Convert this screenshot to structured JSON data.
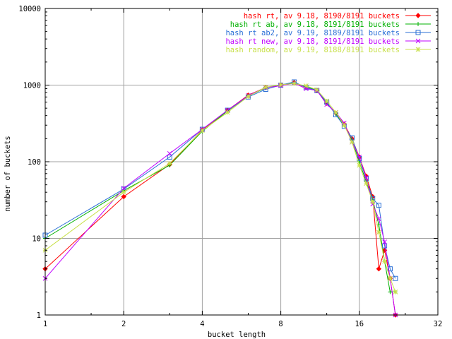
{
  "chart_data": {
    "type": "line",
    "title": "",
    "xlabel": "bucket length",
    "ylabel": "number of buckets",
    "x_scale": "log2",
    "y_scale": "log10",
    "xlim": [
      1,
      32
    ],
    "ylim": [
      1,
      10000
    ],
    "x_ticks": [
      "1",
      "2",
      "4",
      "8",
      "16",
      "32"
    ],
    "y_ticks": [
      "1",
      "10",
      "100",
      "1000",
      "10000"
    ],
    "grid": true,
    "legend_position": "top-right",
    "series": [
      {
        "name": "hash rt, av 9.18, 8190/8191 buckets",
        "color": "#ff0000",
        "marker": "diamond",
        "points": [
          [
            1,
            4
          ],
          [
            2,
            35
          ],
          [
            3,
            92
          ],
          [
            4,
            260
          ],
          [
            5,
            470
          ],
          [
            6,
            740
          ],
          [
            7,
            930
          ],
          [
            8,
            1000
          ],
          [
            9,
            1080
          ],
          [
            10,
            930
          ],
          [
            11,
            850
          ],
          [
            12,
            580
          ],
          [
            13,
            430
          ],
          [
            14,
            310
          ],
          [
            15,
            200
          ],
          [
            16,
            115
          ],
          [
            17,
            65
          ],
          [
            18,
            35
          ],
          [
            19,
            4
          ],
          [
            20,
            7
          ],
          [
            21,
            3
          ],
          [
            22,
            1
          ]
        ]
      },
      {
        "name": "hash rt ab, av 9.18, 8191/8191 buckets",
        "color": "#00b000",
        "marker": "plus",
        "points": [
          [
            1,
            10
          ],
          [
            2,
            42
          ],
          [
            3,
            90
          ],
          [
            4,
            250
          ],
          [
            5,
            460
          ],
          [
            6,
            720
          ],
          [
            7,
            920
          ],
          [
            8,
            1010
          ],
          [
            9,
            1070
          ],
          [
            10,
            950
          ],
          [
            11,
            860
          ],
          [
            12,
            590
          ],
          [
            13,
            420
          ],
          [
            14,
            300
          ],
          [
            15,
            190
          ],
          [
            16,
            100
          ],
          [
            17,
            55
          ],
          [
            18,
            32
          ],
          [
            19,
            15
          ],
          [
            20,
            5
          ],
          [
            21,
            2
          ],
          [
            22,
            2
          ]
        ]
      },
      {
        "name": "hash rt ab2, av 9.19, 8189/8191 buckets",
        "color": "#2a6fd6",
        "marker": "square",
        "points": [
          [
            1,
            11
          ],
          [
            2,
            44
          ],
          [
            3,
            115
          ],
          [
            4,
            265
          ],
          [
            5,
            470
          ],
          [
            6,
            700
          ],
          [
            7,
            880
          ],
          [
            8,
            1000
          ],
          [
            9,
            1100
          ],
          [
            10,
            930
          ],
          [
            11,
            850
          ],
          [
            12,
            600
          ],
          [
            13,
            410
          ],
          [
            14,
            290
          ],
          [
            15,
            205
          ],
          [
            16,
            110
          ],
          [
            17,
            60
          ],
          [
            18,
            33
          ],
          [
            19,
            27
          ],
          [
            20,
            8
          ],
          [
            21,
            4
          ],
          [
            22,
            3
          ]
        ]
      },
      {
        "name": "hash rt new, av 9.18, 8191/8191 buckets",
        "color": "#c000ff",
        "marker": "x",
        "points": [
          [
            1,
            3
          ],
          [
            2,
            45
          ],
          [
            3,
            128
          ],
          [
            4,
            265
          ],
          [
            5,
            470
          ],
          [
            6,
            730
          ],
          [
            7,
            930
          ],
          [
            8,
            980
          ],
          [
            9,
            1060
          ],
          [
            10,
            900
          ],
          [
            11,
            850
          ],
          [
            12,
            560
          ],
          [
            13,
            440
          ],
          [
            14,
            320
          ],
          [
            15,
            180
          ],
          [
            16,
            115
          ],
          [
            17,
            62
          ],
          [
            18,
            28
          ],
          [
            19,
            18
          ],
          [
            20,
            9
          ],
          [
            21,
            3
          ],
          [
            22,
            1
          ]
        ]
      },
      {
        "name": "hash random, av 9.19, 8188/8191 buckets",
        "color": "#c8e04a",
        "marker": "star",
        "points": [
          [
            1,
            7
          ],
          [
            2,
            40
          ],
          [
            3,
            95
          ],
          [
            4,
            255
          ],
          [
            5,
            440
          ],
          [
            6,
            710
          ],
          [
            7,
            940
          ],
          [
            8,
            1010
          ],
          [
            9,
            1050
          ],
          [
            10,
            980
          ],
          [
            11,
            870
          ],
          [
            12,
            620
          ],
          [
            13,
            440
          ],
          [
            14,
            300
          ],
          [
            15,
            180
          ],
          [
            16,
            90
          ],
          [
            17,
            52
          ],
          [
            18,
            30
          ],
          [
            19,
            12
          ],
          [
            20,
            5
          ],
          [
            21,
            3
          ],
          [
            22,
            2
          ]
        ]
      }
    ]
  }
}
